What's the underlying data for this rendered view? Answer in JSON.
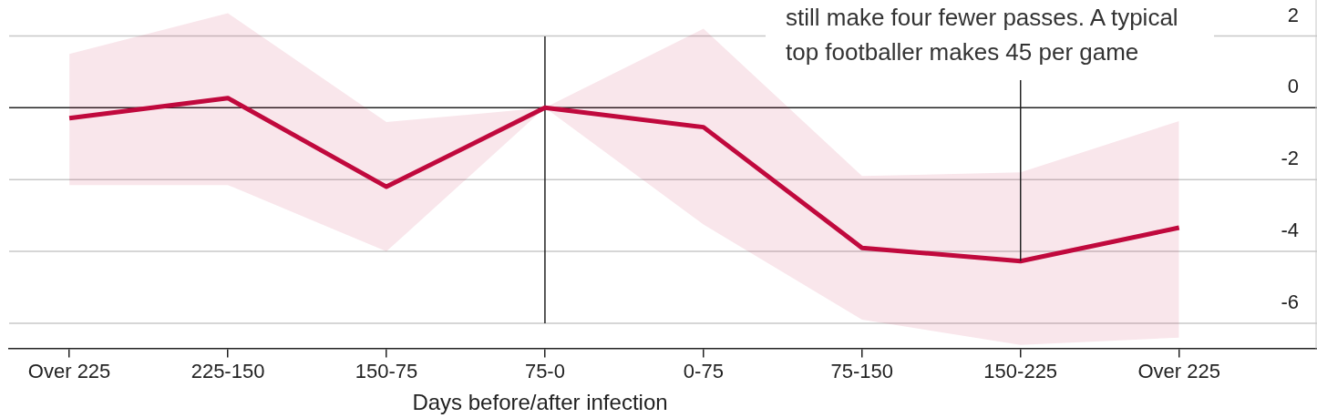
{
  "chart_data": {
    "type": "line",
    "xlabel": "Days before/after infection",
    "categories": [
      "Over 225",
      "225-150",
      "150-75",
      "75-0",
      "0-75",
      "75-150",
      "150-225",
      "Over 225"
    ],
    "series": [
      {
        "color": "#c0093e",
        "values": [
          -0.29,
          0.27,
          -2.2,
          0,
          -0.54,
          -3.9,
          -4.27,
          -3.34
        ],
        "lower": [
          -2.15,
          -2.15,
          -4,
          0,
          -3.25,
          -5.9,
          -6.6,
          -6.4
        ],
        "upper": [
          1.5,
          2.63,
          -0.4,
          0,
          2.2,
          -1.9,
          -1.8,
          -0.37
        ]
      }
    ],
    "ylim": [
      -6.7,
      3
    ],
    "yticks": [
      2,
      0,
      -2,
      -4,
      -6
    ],
    "grid": "y",
    "legend": false,
    "marker": "none",
    "line_style": "solid",
    "ref_lines": [
      {
        "axis": "x",
        "value": "75-0"
      }
    ],
    "annotations": [
      {
        "text": "still make four fewer passes. A typical top footballer makes 45 per game",
        "x": "150-225",
        "y": -4.27
      }
    ]
  }
}
